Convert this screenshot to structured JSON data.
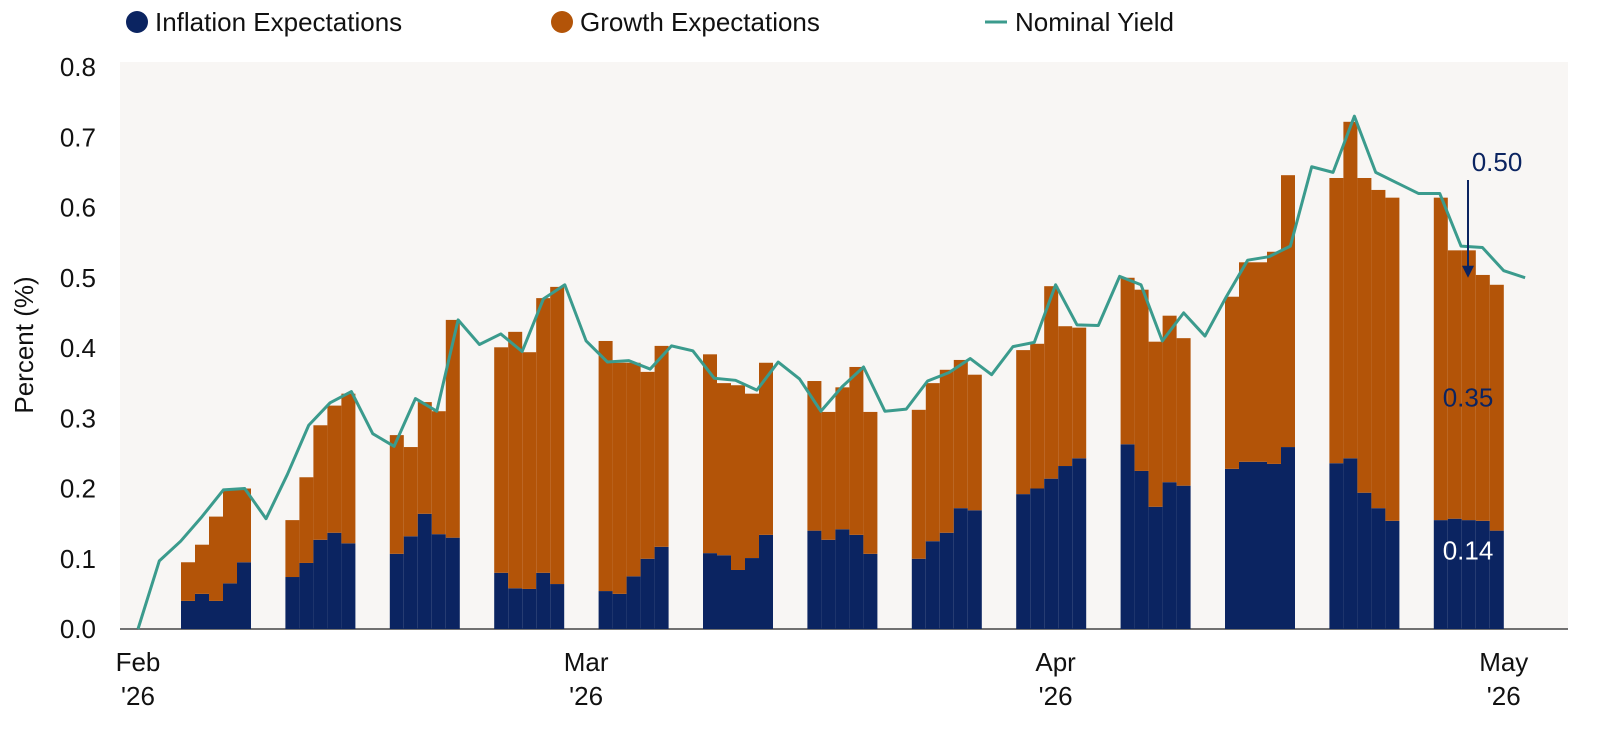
{
  "chart_data": {
    "type": "bar",
    "stacked": true,
    "ylabel": "Percent (%)",
    "ylim": [
      0,
      0.8
    ],
    "yticks": [
      {
        "value": 0,
        "label": "0.0"
      },
      0.1,
      0.2,
      0.3,
      0.4,
      0.5,
      0.6,
      0.7,
      0.8
    ],
    "categories": [
      "Feb '26",
      null,
      null,
      null,
      null,
      null,
      null,
      null,
      null,
      null,
      null,
      null,
      null,
      null,
      null,
      null,
      null,
      null,
      null,
      null,
      null,
      "Mar '26",
      null,
      null,
      null,
      null,
      null,
      null,
      null,
      null,
      null,
      null,
      null,
      null,
      null,
      null,
      null,
      null,
      null,
      null,
      null,
      null,
      null,
      "Apr '26",
      null,
      null,
      null,
      null,
      null,
      null,
      null,
      null,
      null,
      null,
      null,
      null,
      null,
      null,
      null,
      null,
      null,
      null,
      null,
      null,
      "May '26",
      null
    ],
    "series": [
      {
        "name": "Inflation Expectations",
        "color": "#0b2461",
        "values": [
          null,
          0.04,
          0.05,
          0.04,
          0.065,
          0.095,
          0.074,
          0.094,
          0.127,
          0.137,
          0.122,
          0.107,
          0.132,
          0.164,
          0.135,
          0.13,
          0.08,
          0.058,
          0.057,
          0.08,
          0.064,
          0.054,
          0.05,
          0.075,
          0.1,
          0.117,
          0.108,
          0.105,
          0.084,
          0.101,
          0.134,
          0.14,
          0.127,
          0.142,
          0.134,
          0.107,
          0.1,
          0.125,
          0.137,
          0.172,
          0.169,
          0.192,
          0.2,
          0.214,
          0.232,
          0.243,
          0.263,
          0.225,
          0.174,
          0.209,
          0.204,
          0.228,
          0.238,
          0.238,
          0.235,
          0.259,
          0.236,
          0.243,
          0.194,
          0.172,
          0.154,
          0.155,
          0.157,
          0.155,
          0.154,
          0.14
        ],
        "value_labels": [
          null,
          null,
          null,
          null,
          null,
          null,
          null,
          null,
          null,
          null,
          null,
          null,
          null,
          null,
          null,
          null,
          null,
          null,
          null,
          null,
          null,
          null,
          null,
          null,
          null,
          null,
          null,
          null,
          null,
          null,
          null,
          null,
          null,
          null,
          null,
          null,
          null,
          null,
          null,
          null,
          null,
          null,
          null,
          null,
          null,
          null,
          null,
          null,
          null,
          null,
          null,
          null,
          null,
          null,
          null,
          null,
          null,
          null,
          null,
          null,
          null,
          null,
          null,
          null,
          null,
          "0.14"
        ]
      },
      {
        "name": "Growth Expectations",
        "color": "#b35408",
        "values": [
          null,
          0.055,
          0.07,
          0.12,
          0.135,
          0.105,
          0.081,
          0.122,
          0.163,
          0.181,
          0.213,
          0.169,
          0.127,
          0.159,
          0.175,
          0.31,
          0.321,
          0.365,
          0.337,
          0.391,
          0.423,
          0.356,
          0.329,
          0.304,
          0.266,
          0.286,
          0.283,
          0.245,
          0.263,
          0.234,
          0.245,
          0.213,
          0.182,
          0.202,
          0.239,
          0.202,
          0.212,
          0.225,
          0.232,
          0.211,
          0.193,
          0.205,
          0.206,
          0.274,
          0.199,
          0.186,
          0.237,
          0.258,
          0.235,
          0.237,
          0.21,
          0.245,
          0.284,
          0.284,
          0.302,
          0.387,
          0.406,
          0.479,
          0.448,
          0.453,
          0.46,
          0.459,
          0.382,
          0.384,
          0.35,
          0.35
        ],
        "value_labels": [
          null,
          null,
          null,
          null,
          null,
          null,
          null,
          null,
          null,
          null,
          null,
          null,
          null,
          null,
          null,
          null,
          null,
          null,
          null,
          null,
          null,
          null,
          null,
          null,
          null,
          null,
          null,
          null,
          null,
          null,
          null,
          null,
          null,
          null,
          null,
          null,
          null,
          null,
          null,
          null,
          null,
          null,
          null,
          null,
          null,
          null,
          null,
          null,
          null,
          null,
          null,
          null,
          null,
          null,
          null,
          null,
          null,
          null,
          null,
          null,
          null,
          null,
          null,
          null,
          null,
          "0.35"
        ]
      },
      {
        "name": "Nominal Yield",
        "color": "#3b9b8d",
        "type": "line",
        "values": [
          0,
          0.097,
          0.125,
          0.16,
          0.198,
          0.2,
          0.157,
          0.22,
          0.29,
          0.322,
          0.338,
          0.278,
          0.26,
          0.328,
          0.31,
          0.44,
          0.405,
          0.42,
          0.395,
          0.47,
          0.49,
          0.41,
          0.38,
          0.382,
          0.37,
          0.403,
          0.396,
          0.357,
          0.354,
          0.34,
          0.38,
          0.356,
          0.31,
          0.345,
          0.373,
          0.31,
          0.313,
          0.353,
          0.365,
          0.385,
          0.362,
          0.402,
          0.408,
          0.49,
          0.433,
          0.432,
          0.502,
          0.49,
          0.41,
          0.45,
          0.417,
          0.473,
          0.525,
          0.53,
          0.545,
          0.658,
          0.65,
          0.73,
          0.65,
          0.635,
          0.62,
          0.62,
          0.545,
          0.543,
          0.51,
          0.5
        ],
        "value_labels": [
          null,
          null,
          null,
          null,
          null,
          null,
          null,
          null,
          null,
          null,
          null,
          null,
          null,
          null,
          null,
          null,
          null,
          null,
          null,
          null,
          null,
          null,
          null,
          null,
          null,
          null,
          null,
          null,
          null,
          null,
          null,
          null,
          null,
          null,
          null,
          null,
          null,
          null,
          null,
          null,
          null,
          null,
          null,
          null,
          null,
          null,
          null,
          null,
          null,
          null,
          null,
          null,
          null,
          null,
          null,
          null,
          null,
          null,
          null,
          null,
          null,
          null,
          null,
          null,
          null,
          "0.50"
        ]
      }
    ]
  }
}
